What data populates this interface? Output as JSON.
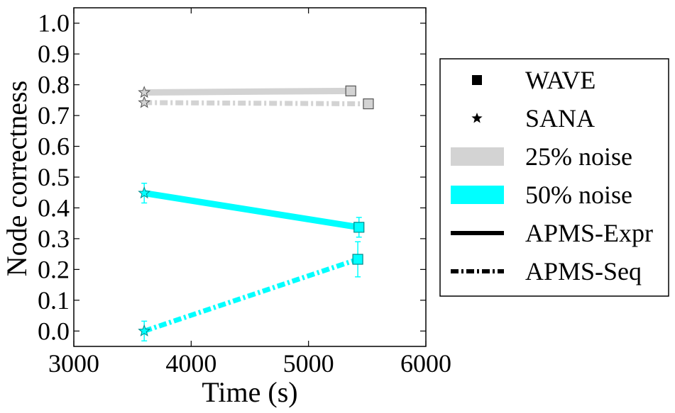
{
  "chart_data": {
    "type": "line",
    "xlabel": "Time (s)",
    "ylabel": "Node correctness",
    "xlim": [
      3000,
      6000
    ],
    "ylim": [
      -0.05,
      1.05
    ],
    "xticks": [
      3000,
      4000,
      5000,
      6000
    ],
    "xtick_labels": [
      "3000",
      "4000",
      "5000",
      "6000"
    ],
    "yticks": [
      0.0,
      0.1,
      0.2,
      0.3,
      0.4,
      0.5,
      0.6,
      0.7,
      0.8,
      0.9,
      1.0
    ],
    "ytick_labels": [
      "0.0",
      "0.1",
      "0.2",
      "0.3",
      "0.4",
      "0.5",
      "0.6",
      "0.7",
      "0.8",
      "0.9",
      "1.0"
    ],
    "grid": false,
    "legend_position": "right",
    "series": [
      {
        "name": "25% noise APMS-Expr",
        "noise": "25% noise",
        "network": "APMS-Expr",
        "color": "#d3d3d3",
        "line_style": "solid",
        "points": [
          {
            "method": "SANA",
            "x": 3600,
            "y": 0.775,
            "err": 0
          },
          {
            "method": "WAVE",
            "x": 5360,
            "y": 0.78,
            "err": 0
          }
        ]
      },
      {
        "name": "25% noise APMS-Seq",
        "noise": "25% noise",
        "network": "APMS-Seq",
        "color": "#d3d3d3",
        "line_style": "dashdot",
        "points": [
          {
            "method": "SANA",
            "x": 3600,
            "y": 0.742,
            "err": 0
          },
          {
            "method": "WAVE",
            "x": 5510,
            "y": 0.738,
            "err": 0
          }
        ]
      },
      {
        "name": "50% noise APMS-Expr",
        "noise": "50% noise",
        "network": "APMS-Expr",
        "color": "#00ffff",
        "line_style": "solid",
        "points": [
          {
            "method": "SANA",
            "x": 3600,
            "y": 0.448,
            "err": 0.032
          },
          {
            "method": "WAVE",
            "x": 5430,
            "y": 0.337,
            "err": 0.032
          }
        ]
      },
      {
        "name": "50% noise APMS-Seq",
        "noise": "50% noise",
        "network": "APMS-Seq",
        "color": "#00ffff",
        "line_style": "dashdot",
        "points": [
          {
            "method": "SANA",
            "x": 3600,
            "y": 0.0,
            "err": 0.032
          },
          {
            "method": "WAVE",
            "x": 5420,
            "y": 0.233,
            "err": 0.057
          }
        ]
      }
    ],
    "legend": [
      {
        "label": "WAVE",
        "kind": "square-marker"
      },
      {
        "label": "SANA",
        "kind": "star-marker"
      },
      {
        "label": "25% noise",
        "kind": "color-patch",
        "color": "#d3d3d3"
      },
      {
        "label": "50% noise",
        "kind": "color-patch",
        "color": "#00ffff"
      },
      {
        "label": "APMS-Expr",
        "kind": "solid-line"
      },
      {
        "label": "APMS-Seq",
        "kind": "dashdot-line"
      }
    ]
  }
}
